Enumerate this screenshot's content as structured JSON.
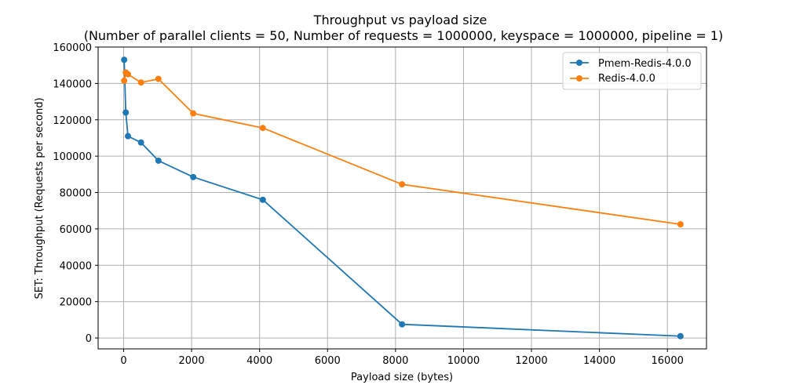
{
  "chart_data": {
    "type": "line",
    "title": "Throughput vs payload size",
    "subtitle": "(Number of parallel clients = 50, Number of requests = 1000000, keyspace = 1000000, pipeline = 1)",
    "xlabel": "Payload size (bytes)",
    "ylabel": "SET: Throughput (Requests per second)",
    "xlim": [
      -750,
      17150
    ],
    "ylim": [
      -6000,
      160000
    ],
    "xticks": [
      0,
      2000,
      4000,
      6000,
      8000,
      10000,
      12000,
      14000,
      16000
    ],
    "xtick_labels": [
      "0",
      "2000",
      "4000",
      "6000",
      "8000",
      "10000",
      "12000",
      "14000",
      "16000"
    ],
    "yticks": [
      0,
      20000,
      40000,
      60000,
      80000,
      100000,
      120000,
      140000,
      160000
    ],
    "ytick_labels": [
      "0",
      "20000",
      "40000",
      "60000",
      "80000",
      "100000",
      "120000",
      "140000",
      "160000"
    ],
    "grid": true,
    "legend_position": "top-right",
    "series": [
      {
        "name": "Pmem-Redis-4.0.0",
        "color": "#1f77b4",
        "x": [
          16,
          64,
          128,
          512,
          1024,
          2048,
          4096,
          8192,
          16384
        ],
        "y": [
          153000,
          124000,
          111000,
          107500,
          97500,
          88500,
          76000,
          7500,
          1000
        ]
      },
      {
        "name": "Redis-4.0.0",
        "color": "#ff7f0e",
        "x": [
          16,
          64,
          128,
          512,
          1024,
          2048,
          4096,
          8192,
          16384
        ],
        "y": [
          141500,
          146000,
          145000,
          140500,
          142500,
          123500,
          115500,
          84500,
          62500
        ]
      }
    ]
  }
}
